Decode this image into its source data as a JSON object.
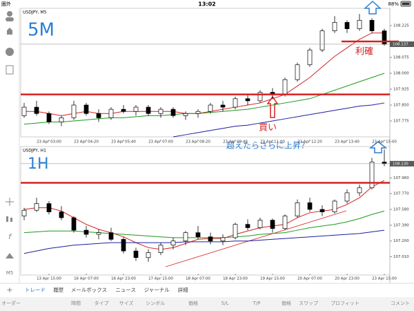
{
  "status_bar": {
    "carrier": "圏外",
    "time": "13:02",
    "battery": "88%"
  },
  "timeframe": "M5",
  "chart_data": [
    {
      "type": "candlestick",
      "title": "USDJPY, M5",
      "label": "5M",
      "annotations": [
        "利確",
        "買い"
      ],
      "categories": [
        null,
        null,
        "23 Apr 03:00",
        null,
        null,
        "23 Apr 04:20",
        null,
        null,
        "23 Apr 05:40",
        null,
        null,
        "23 Apr 07:00",
        null,
        null,
        "23 Apr 08:20",
        null,
        null,
        "23 Apr 09:40",
        null,
        null,
        "23 Apr 11:00",
        null,
        null,
        "23 Apr 12:20",
        null,
        null,
        "23 Apr 13:40",
        null,
        null,
        "23 Apr 15:00"
      ],
      "open": [
        107.8,
        107.84,
        107.81,
        107.77,
        107.79,
        107.85,
        107.81,
        107.79,
        107.83,
        107.82,
        107.84,
        107.81,
        107.83,
        107.8,
        107.81,
        107.82,
        107.85,
        107.84,
        107.88,
        107.87,
        107.91,
        107.9,
        107.97,
        108.04,
        108.11,
        108.2,
        108.24,
        108.21,
        108.25,
        108.2
      ],
      "high": [
        107.86,
        107.87,
        107.82,
        107.8,
        107.87,
        107.86,
        107.83,
        107.84,
        107.85,
        107.85,
        107.85,
        107.84,
        107.84,
        107.82,
        107.83,
        107.86,
        107.87,
        107.89,
        107.9,
        107.92,
        107.93,
        107.98,
        108.05,
        108.12,
        108.21,
        108.27,
        108.25,
        108.28,
        108.26,
        108.21
      ],
      "low": [
        107.79,
        107.8,
        107.76,
        107.75,
        107.78,
        107.8,
        107.77,
        107.78,
        107.81,
        107.8,
        107.8,
        107.79,
        107.79,
        107.78,
        107.79,
        107.81,
        107.82,
        107.83,
        107.85,
        107.86,
        107.88,
        107.89,
        107.96,
        108.03,
        108.1,
        108.19,
        108.19,
        108.2,
        108.19,
        108.13
      ],
      "close": [
        107.84,
        107.81,
        107.77,
        107.79,
        107.85,
        107.81,
        107.79,
        107.83,
        107.82,
        107.84,
        107.81,
        107.83,
        107.8,
        107.81,
        107.82,
        107.85,
        107.84,
        107.88,
        107.87,
        107.91,
        107.9,
        107.97,
        108.04,
        108.11,
        108.2,
        108.24,
        108.21,
        108.25,
        108.2,
        108.137
      ],
      "series": [
        {
          "color": "#d42020",
          "values": [
            107.82,
            107.82,
            107.81,
            107.8,
            107.81,
            107.82,
            107.81,
            107.81,
            107.82,
            107.82,
            107.82,
            107.82,
            107.82,
            107.81,
            107.81,
            107.82,
            107.83,
            107.84,
            107.85,
            107.86,
            107.88,
            107.9,
            107.94,
            107.98,
            108.03,
            108.08,
            108.12,
            108.16,
            108.19,
            108.19
          ]
        },
        {
          "color": "#1a9a1a",
          "values": [
            107.76,
            107.765,
            107.77,
            107.77,
            107.775,
            107.78,
            107.785,
            107.79,
            107.79,
            107.795,
            107.8,
            107.8,
            107.805,
            107.81,
            107.81,
            107.815,
            107.82,
            107.825,
            107.83,
            107.84,
            107.85,
            107.86,
            107.87,
            107.88,
            107.9,
            107.92,
            107.94,
            107.96,
            107.98,
            108.0
          ]
        },
        {
          "color": "#1c1ca0",
          "values": [
            null,
            null,
            null,
            null,
            null,
            null,
            null,
            null,
            null,
            null,
            null,
            null,
            107.7,
            107.71,
            107.72,
            107.73,
            107.74,
            107.75,
            107.755,
            107.765,
            107.775,
            107.785,
            107.795,
            107.805,
            107.815,
            107.825,
            107.835,
            107.845,
            107.85,
            107.86
          ]
        }
      ],
      "ylim": [
        107.7,
        108.3
      ],
      "yticks": [
        108.225,
        108.075,
        {
          "value": 108,
          "label": "108.000"
        },
        107.925,
        {
          "value": 107.85,
          "label": "107.850"
        },
        107.775
      ],
      "last": 108.137,
      "levels": [
        {
          "value": 107.9,
          "color": "#d42020"
        }
      ],
      "take_profit": {
        "value": 108.15,
        "color": "#d42020"
      }
    },
    {
      "type": "candlestick",
      "title": "USDJPY, H1",
      "label": "1H",
      "annotations": [
        "超えたらさらに上昇？"
      ],
      "categories": [
        null,
        null,
        "13 Apr 15:00",
        null,
        null,
        "16 Apr 07:00",
        null,
        null,
        "16 Apr 23:00",
        null,
        null,
        "17 Apr 15:00",
        null,
        null,
        "18 Apr 07:00",
        null,
        null,
        "18 Apr 23:00",
        null,
        null,
        "19 Apr 15:00",
        null,
        null,
        "20 Apr 07:00",
        null,
        null,
        "20 Apr 23:00",
        null,
        null,
        "23 Apr 15:00"
      ],
      "open": [
        107.5,
        107.57,
        107.65,
        107.55,
        107.48,
        107.33,
        107.28,
        107.3,
        107.22,
        107.08,
        107.0,
        107.06,
        107.15,
        107.2,
        107.3,
        107.25,
        107.2,
        107.24,
        107.4,
        107.36,
        107.45,
        107.35,
        107.5,
        107.66,
        107.58,
        107.55,
        107.68,
        107.78,
        107.84,
        108.15
      ],
      "high": [
        107.6,
        107.72,
        107.68,
        107.62,
        107.5,
        107.38,
        107.34,
        107.36,
        107.25,
        107.12,
        107.1,
        107.18,
        107.24,
        107.32,
        107.38,
        107.3,
        107.28,
        107.42,
        107.46,
        107.48,
        107.47,
        107.52,
        107.7,
        107.72,
        107.63,
        107.7,
        107.82,
        107.88,
        108.2,
        108.3
      ],
      "low": [
        107.45,
        107.55,
        107.52,
        107.45,
        107.3,
        107.24,
        107.22,
        107.2,
        107.05,
        106.96,
        106.95,
        107.03,
        107.1,
        107.15,
        107.22,
        107.16,
        107.15,
        107.22,
        107.33,
        107.34,
        107.3,
        107.33,
        107.48,
        107.55,
        107.5,
        107.53,
        107.65,
        107.74,
        107.82,
        108.1
      ],
      "close": [
        107.57,
        107.65,
        107.55,
        107.48,
        107.33,
        107.28,
        107.3,
        107.22,
        107.08,
        107.0,
        107.06,
        107.15,
        107.2,
        107.3,
        107.25,
        107.2,
        107.24,
        107.4,
        107.36,
        107.45,
        107.35,
        107.5,
        107.66,
        107.58,
        107.55,
        107.68,
        107.78,
        107.84,
        108.15,
        108.13
      ],
      "series": [
        {
          "color": "#d42020",
          "values": [
            107.58,
            107.6,
            107.6,
            107.56,
            107.48,
            107.4,
            107.34,
            107.3,
            107.25,
            107.18,
            107.12,
            107.1,
            107.12,
            107.17,
            107.22,
            107.23,
            107.23,
            107.28,
            107.32,
            107.36,
            107.38,
            107.4,
            107.48,
            107.54,
            107.56,
            107.58,
            107.64,
            107.72,
            107.85,
            107.93
          ]
        },
        {
          "color": "#1a9a1a",
          "values": [
            107.3,
            107.31,
            107.32,
            107.32,
            107.32,
            107.31,
            107.3,
            107.29,
            107.28,
            107.27,
            107.26,
            107.25,
            107.24,
            107.24,
            107.24,
            107.24,
            107.24,
            107.25,
            107.26,
            107.28,
            107.29,
            107.3,
            107.33,
            107.36,
            107.38,
            107.4,
            107.43,
            107.47,
            107.52,
            107.56
          ]
        },
        {
          "color": "#1c1ca0",
          "values": [
            107.05,
            107.08,
            107.11,
            107.13,
            107.15,
            107.16,
            107.17,
            107.18,
            107.18,
            107.18,
            107.18,
            107.18,
            107.18,
            107.19,
            107.19,
            107.19,
            107.19,
            107.2,
            107.2,
            107.21,
            107.22,
            107.23,
            107.24,
            107.25,
            107.26,
            107.27,
            107.28,
            107.29,
            107.31,
            107.33
          ]
        }
      ],
      "ylim": [
        106.84,
        108.32
      ],
      "yticks": [
        {
          "value": 107.96,
          "label": "107.960"
        },
        {
          "value": 107.77,
          "label": "107.770"
        },
        {
          "value": 107.58,
          "label": "107.580"
        },
        {
          "value": 107.39,
          "label": "107.390"
        },
        {
          "value": 107.2,
          "label": "107.200"
        },
        {
          "value": 107.01,
          "label": "107.010"
        }
      ],
      "last": {
        "value": 108.13,
        "label": "108.130"
      },
      "levels": [
        {
          "value": 107.9,
          "color": "#d42020"
        }
      ]
    }
  ],
  "tabs": [
    "トレード",
    "履歴",
    "メールボックス",
    "ニュース",
    "ジャーナル",
    "詳細"
  ],
  "columns": [
    "オーダー",
    "時間",
    "タイプ",
    "サイズ",
    "シンボル",
    "価格",
    "S/L",
    "T/P",
    "価格",
    "スワップ",
    "プロフィット",
    "コメント"
  ]
}
